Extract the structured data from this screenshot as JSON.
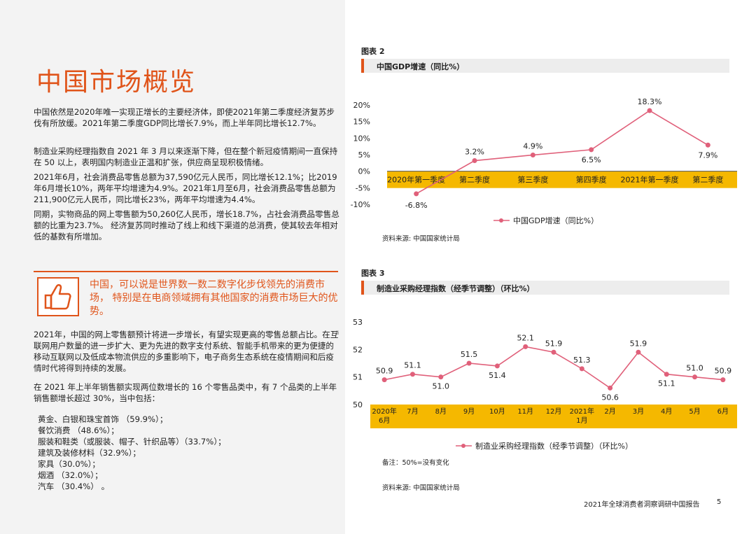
{
  "title": "中国市场概览",
  "paragraphs": [
    "中国依然是2020年唯一实现正增长的主要经济体，即使2021年第二季度经济复苏步伐有所放缓。2021年第二季度GDP同比增长7.9%，而上半年同比增长12.7%。",
    "制造业采购经理指数自 2021 年 3 月以来逐渐下降，但在整个新冠疫情期间一直保持在 50 以上，表明国内制造业正温和扩张，供应商呈现积极情绪。",
    "2021年6月，社会消费品零售总额为37,590亿元人民币，同比增长12.1%；比2019年6月增长10%，两年平均增速为4.9%。2021年1月至6月，社会消费品零售总额为211,900亿元人民币，同比增长23%，两年平均增速为4.4%。",
    "同期，实物商品的网上零售额为50,260亿人民币，增长18.7%，占社会消费品零售总额的比重为23.7%。 经济复苏同时推动了线上和线下渠道的总消费，使其较去年相对低的基数有所增加。"
  ],
  "quote": "中国，可以说是世界数一数二数字化步伐领先的消费市场， 特别是在电商领域拥有其他国家的消费市场巨大的优势。",
  "paragraph5": "2021年，中国的网上零售额预计将进一步增长，有望实现更高的零售总额占比。在互联网用户数量的进一步扩大、更为先进的数字支付系统、智能手机带来的更为便捷的移动互联网以及低成本物流供应的多重影响下，电子商务生态系统在疫情期间和后疫情时代将得到持续的发展。",
  "footnote_mark": "ii",
  "paragraph6": "在 2021 年上半年销售额实现两位数增长的 16 个零售品类中，有 7 个品类的上半年销售额增长超过 30%，当中包括：",
  "list": [
    "黄金、白银和珠宝首饰 （59.9%）；",
    "餐饮消费 （48.6%）；",
    "服装和鞋类（或服装、帽子、针织品等）（33.7%）；",
    "建筑及装修材料（32.9%）；",
    "家具（30.0%）；",
    "烟酒 （32.0%）；",
    "汽车 （30.4%） 。"
  ],
  "fig2": {
    "label": "图表 2",
    "bar_title": "中国GDP增速（同比%）",
    "source": "资料来源: 中国国家统计局"
  },
  "fig3": {
    "label": "图表 3",
    "bar_title": "制造业采购经理指数（经季节调整）（环比%）",
    "note": "备注：50%=没有变化",
    "source": "资料来源: 中国国家统计局"
  },
  "footer": "2021年全球消费者洞察调研中国报告",
  "page_number": "5",
  "colors": {
    "accent": "#e0541a",
    "line": "#e0607a",
    "axis_band": "#f5b800"
  },
  "chart_data": [
    {
      "type": "line",
      "title": "中国GDP增速（同比%）",
      "categories": [
        "2020年第一季度",
        "第二季度",
        "第三季度",
        "第四季度",
        "2021年第一季度",
        "第二季度"
      ],
      "series": [
        {
          "name": "中国GDP增速（同比%）",
          "values": [
            -6.8,
            3.2,
            4.9,
            6.5,
            18.3,
            7.9
          ]
        }
      ],
      "value_labels": [
        "-6.8%",
        "3.2%",
        "4.9%",
        "6.5%",
        "18.3%",
        "7.9%"
      ],
      "y_ticks": [
        "20%",
        "15%",
        "10%",
        "5%",
        "0%",
        "-5%",
        "-10%"
      ],
      "y_tick_values": [
        20,
        15,
        10,
        5,
        0,
        -5,
        -10
      ],
      "ylim": [
        -10,
        20
      ],
      "legend": "bottom",
      "grid": false
    },
    {
      "type": "line",
      "title": "制造业采购经理指数（经季节调整）（环比%）",
      "categories": [
        [
          "2020年",
          "6月"
        ],
        [
          "7月"
        ],
        [
          "8月"
        ],
        [
          "9月"
        ],
        [
          "10月"
        ],
        [
          "11月"
        ],
        [
          "12月"
        ],
        [
          "2021年",
          "1月"
        ],
        [
          "2月"
        ],
        [
          "3月"
        ],
        [
          "4月"
        ],
        [
          "5月"
        ],
        [
          "6月"
        ]
      ],
      "series": [
        {
          "name": "制造业采购经理指数（经季节调整）（环比%）",
          "values": [
            50.9,
            51.1,
            51.0,
            51.5,
            51.4,
            52.1,
            51.9,
            51.3,
            50.6,
            51.9,
            51.1,
            51.0,
            50.9
          ]
        }
      ],
      "value_labels": [
        "50.9",
        "51.1",
        "51.0",
        "51.5",
        "51.4",
        "52.1",
        "51.9",
        "51.3",
        "50.6",
        "51.9",
        "51.1",
        "51.0",
        "50.9"
      ],
      "y_ticks": [
        "53",
        "52",
        "51",
        "50"
      ],
      "y_tick_values": [
        53,
        52,
        51,
        50
      ],
      "ylim": [
        50,
        53
      ],
      "legend": "bottom",
      "grid": false
    }
  ]
}
